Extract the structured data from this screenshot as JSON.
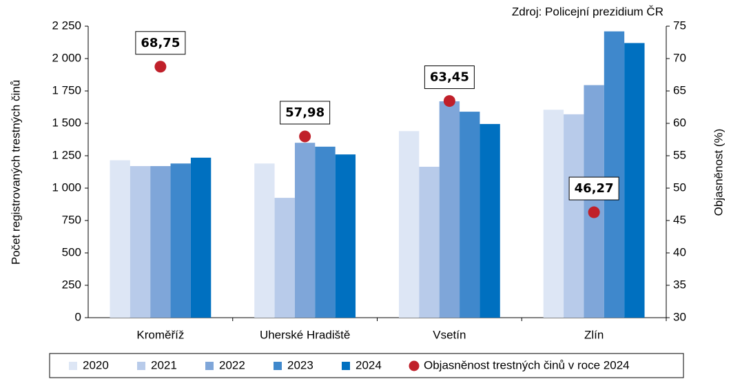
{
  "chart_data": {
    "type": "bar",
    "source": "Zdroj: Policejní prezidium ČR",
    "ylabel": "Počet registrovaných trestných činů",
    "y2label": "Objasněnost (%)",
    "categories": [
      "Kroměříž",
      "Uherské Hradiště",
      "Vsetín",
      "Zlín"
    ],
    "series": [
      {
        "name": "2020",
        "color": "#dde6f5",
        "values": [
          1215,
          1190,
          1440,
          1605
        ]
      },
      {
        "name": "2021",
        "color": "#b8cbea",
        "values": [
          1170,
          925,
          1165,
          1570
        ]
      },
      {
        "name": "2022",
        "color": "#7fa6d9",
        "values": [
          1170,
          1350,
          1670,
          1795
        ]
      },
      {
        "name": "2023",
        "color": "#3f88cc",
        "values": [
          1190,
          1320,
          1590,
          2210
        ]
      },
      {
        "name": "2024",
        "color": "#0070c0",
        "values": [
          1235,
          1260,
          1495,
          2120
        ]
      },
      {
        "name": "Objasněnost trestných činů v roce 2024",
        "type": "scatter",
        "axis": "y2",
        "color": "#c0202a",
        "values": [
          68.75,
          57.98,
          63.45,
          46.27
        ],
        "value_labels": [
          "68,75",
          "57,98",
          "63,45",
          "46,27"
        ]
      }
    ],
    "ylim": [
      0,
      2250
    ],
    "yticks": [
      0,
      250,
      500,
      750,
      {
        "value": 1000,
        "label": "1 000"
      },
      {
        "value": 1250,
        "label": "1 250"
      },
      {
        "value": 1500,
        "label": "1 500"
      },
      {
        "value": 1750,
        "label": "1 750"
      },
      {
        "value": 2000,
        "label": "2 000"
      },
      {
        "value": 2250,
        "label": "2 250"
      }
    ],
    "y2lim": [
      30,
      75
    ],
    "y2ticks": [
      30,
      35,
      40,
      45,
      50,
      55,
      60,
      65,
      70,
      75
    ],
    "legend": "bottom"
  }
}
